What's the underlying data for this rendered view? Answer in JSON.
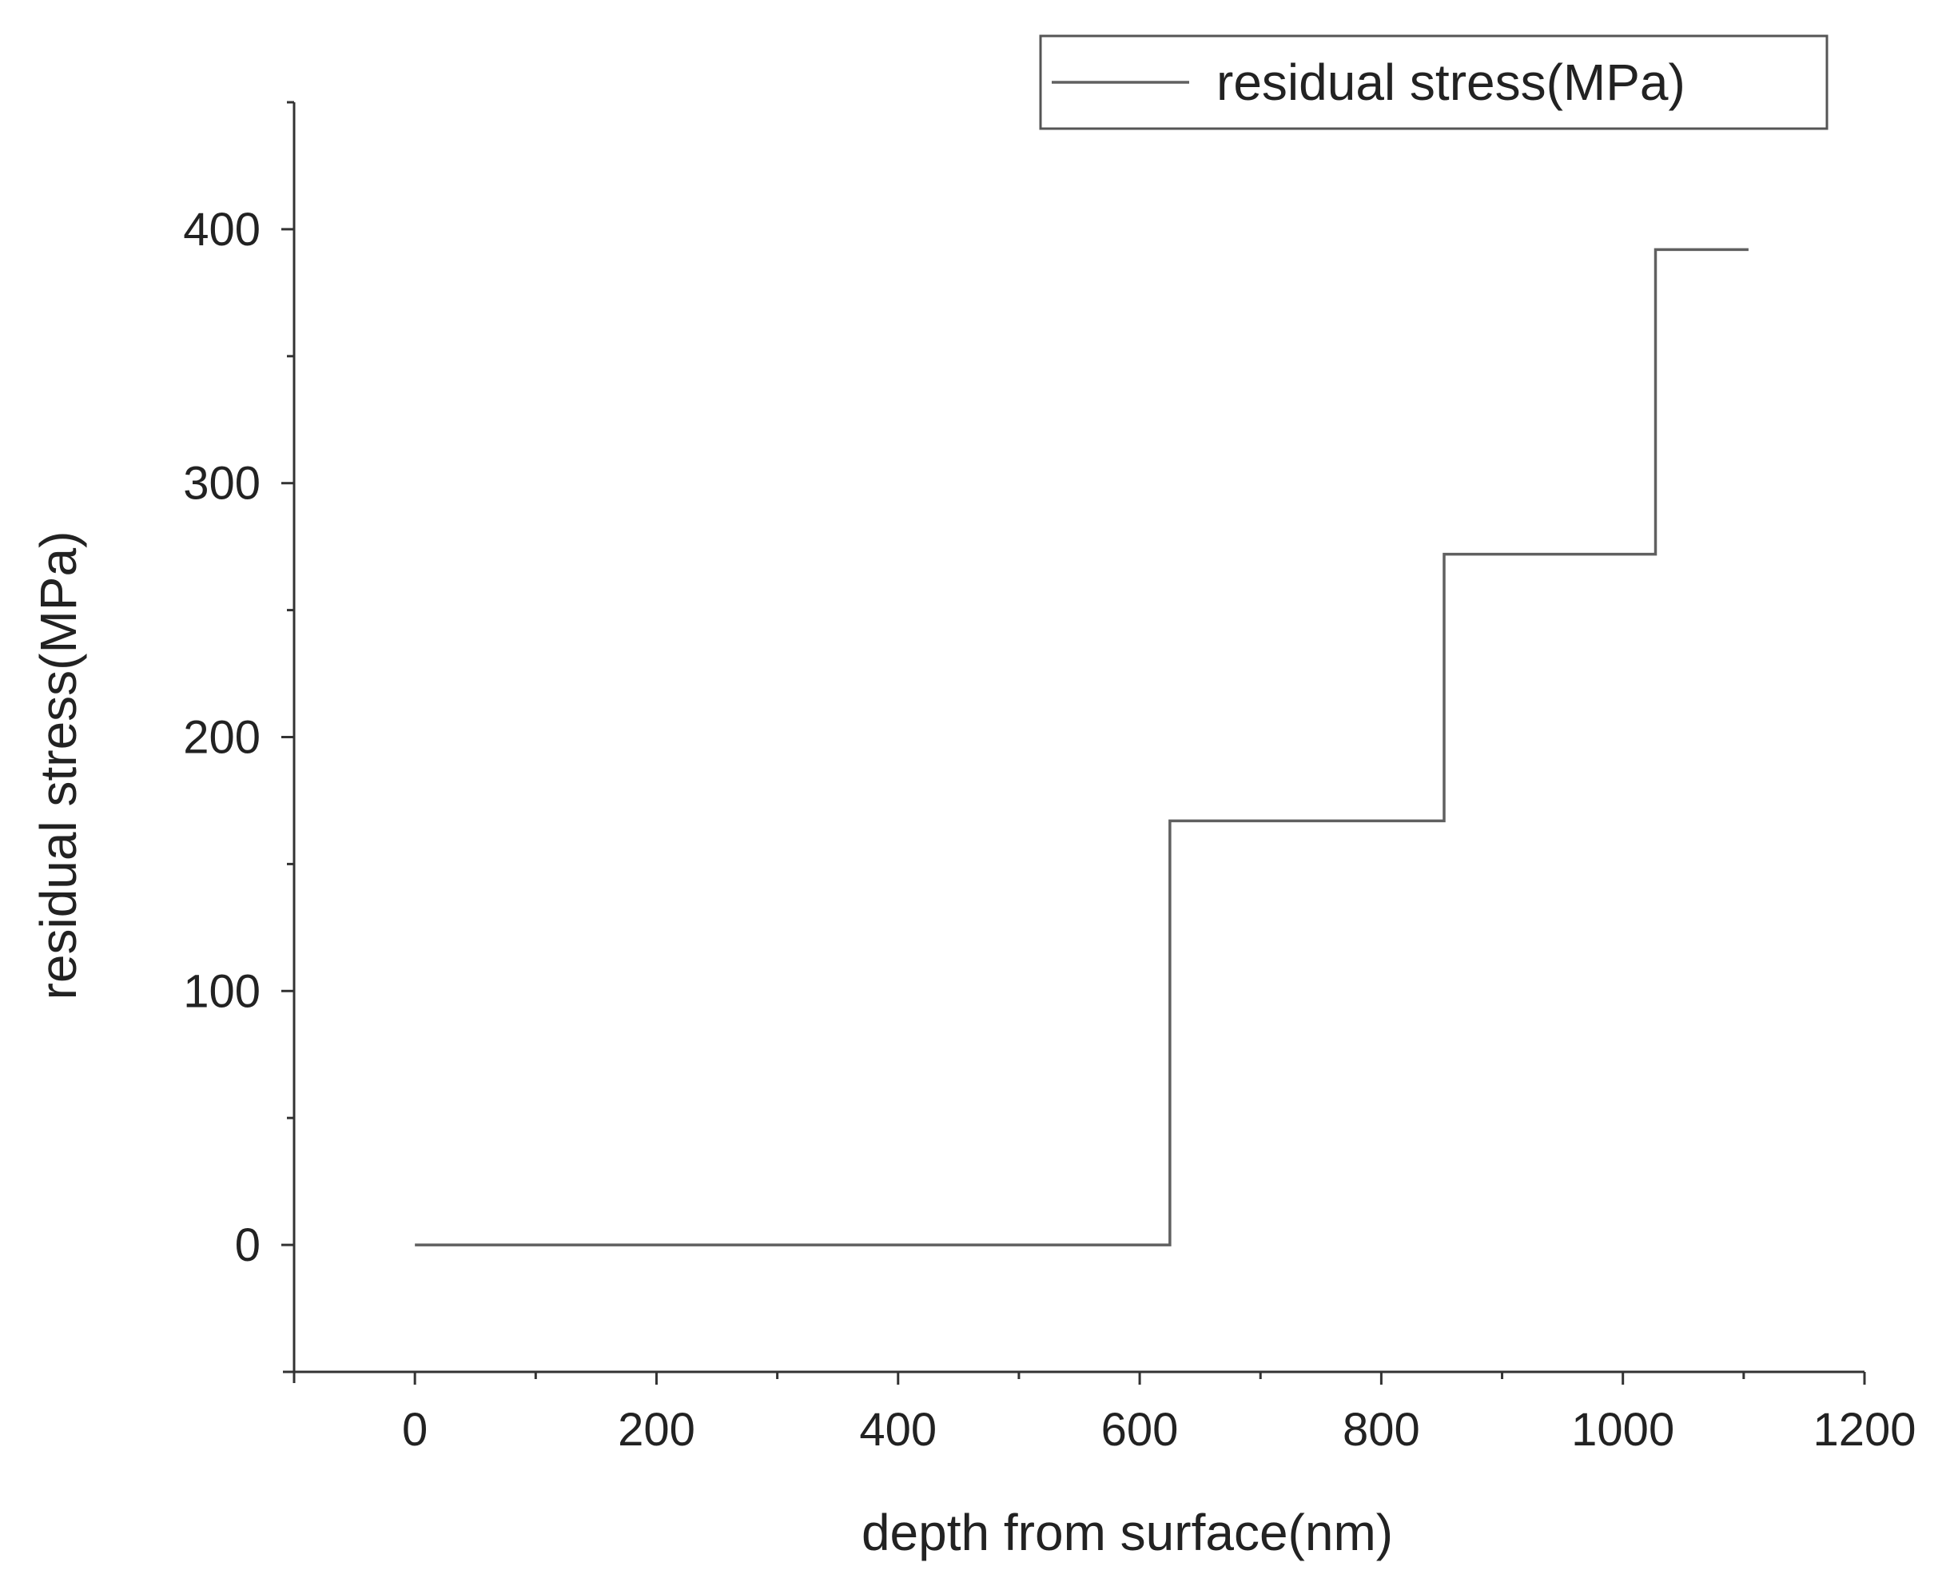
{
  "chart_data": {
    "type": "line",
    "step": true,
    "title": "",
    "xlabel": "depth from surface(nm)",
    "ylabel": "residual stress(MPa)",
    "xlim": [
      -100,
      1200
    ],
    "ylim": [
      -50,
      450
    ],
    "xticks": [
      0,
      200,
      400,
      600,
      800,
      1000,
      1200
    ],
    "yticks": [
      0,
      100,
      200,
      300,
      400
    ],
    "grid": false,
    "legend": {
      "position": "top-right",
      "entries": [
        "residual stress(MPa)"
      ]
    },
    "series": [
      {
        "name": "residual stress(MPa)",
        "color": "#606060",
        "x": [
          0,
          625,
          625,
          852,
          852,
          1027,
          1027,
          1104
        ],
        "y": [
          0,
          0,
          167,
          167,
          272,
          272,
          392,
          392
        ]
      }
    ]
  }
}
